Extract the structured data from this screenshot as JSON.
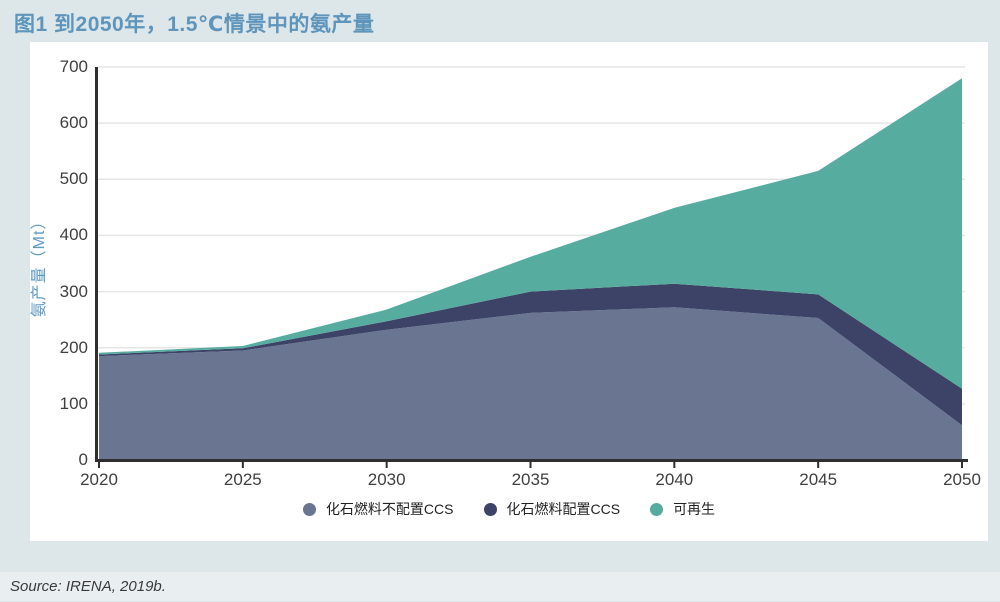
{
  "page": {
    "title": "图1 到2050年，1.5℃情景中的氨产量",
    "source": "Source: IRENA, 2019b.",
    "background": "#dde6e8",
    "card_background": "#ffffff",
    "title_color": "#5e95bc",
    "axis_color": "#2f2f2f",
    "gridline_color": "#e6e6e6",
    "tick_label_color": "#3f3f3f"
  },
  "chart_data": {
    "type": "area",
    "stacked": true,
    "title": "图1 到2050年，1.5℃情景中的氨产量",
    "ylabel": "氨产量（Mt）",
    "xlabel": "",
    "x": [
      2020,
      2025,
      2030,
      2035,
      2040,
      2045,
      2050
    ],
    "series": [
      {
        "name": "化石燃料不配置CCS",
        "color": "#6a7592",
        "values": [
          185,
          195,
          232,
          262,
          272,
          253,
          62
        ]
      },
      {
        "name": "化石燃料配置CCS",
        "color": "#3c4366",
        "values": [
          3,
          4,
          15,
          38,
          42,
          42,
          65
        ]
      },
      {
        "name": "可再生",
        "color": "#57aca0",
        "values": [
          3,
          4,
          21,
          62,
          135,
          220,
          553
        ]
      }
    ],
    "ylim": [
      0,
      700
    ],
    "ytick_step": 100,
    "grid": true,
    "legend_position": "bottom"
  }
}
